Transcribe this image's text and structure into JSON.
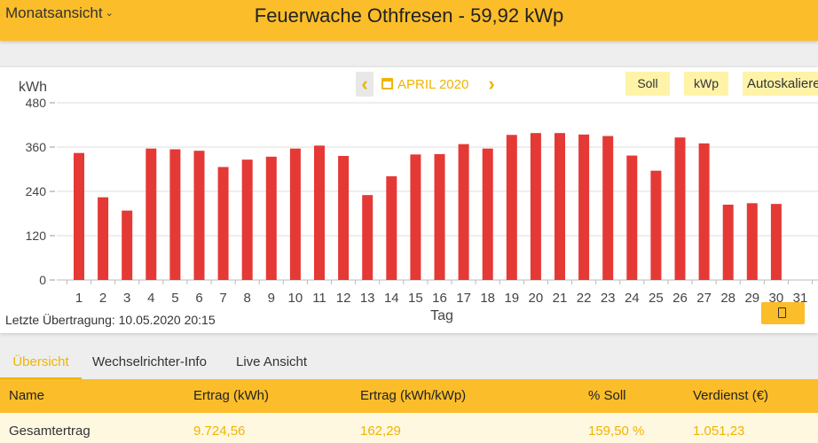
{
  "header": {
    "view_select": "Monatsansicht",
    "title": "Feuerwache Othfresen - 59,92 kWp"
  },
  "toolbar": {
    "month": "APRIL 2020",
    "soll": "Soll",
    "kwp": "kWp",
    "autoscale": "Autoskalieren"
  },
  "chart_data": {
    "type": "bar",
    "ylabel": "kWh",
    "xlabel": "Tag",
    "ylim": [
      0,
      480
    ],
    "yticks": [
      0,
      120,
      240,
      360,
      480
    ],
    "grid": true,
    "bar_color": "#e53935",
    "categories": [
      "1",
      "2",
      "3",
      "4",
      "5",
      "6",
      "7",
      "8",
      "9",
      "10",
      "11",
      "12",
      "13",
      "14",
      "15",
      "16",
      "17",
      "18",
      "19",
      "20",
      "21",
      "22",
      "23",
      "24",
      "25",
      "26",
      "27",
      "28",
      "29",
      "30",
      "31"
    ],
    "values": [
      344,
      224,
      188,
      356,
      354,
      350,
      306,
      326,
      334,
      356,
      364,
      336,
      230,
      281,
      340,
      341,
      368,
      356,
      393,
      398,
      398,
      394,
      390,
      337,
      296,
      386,
      370,
      204,
      208,
      206,
      null
    ]
  },
  "status": {
    "last_transfer": "Letzte Übertragung: 10.05.2020 20:15"
  },
  "tabs": [
    "Übersicht",
    "Wechselrichter-Info",
    "Live Ansicht"
  ],
  "table": {
    "headers": [
      "Name",
      "Ertrag (kWh)",
      "Ertrag (kWh/kWp)",
      "% Soll",
      "Verdienst (€)"
    ],
    "row": [
      "Gesamtertrag",
      "9.724,56",
      "162,29",
      "159,50 %",
      "1.051,23"
    ]
  }
}
